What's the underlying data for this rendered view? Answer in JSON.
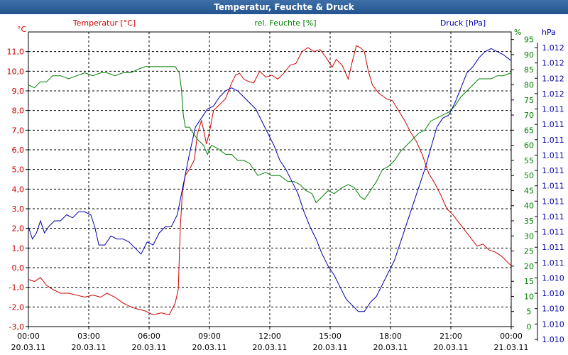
{
  "window": {
    "title": "Temperatur, Feuchte & Druck"
  },
  "chart_data": {
    "type": "line",
    "title": "Temperatur, Feuchte & Druck",
    "grid": true,
    "x": {
      "ticks": [
        {
          "time": "00:00",
          "date": "20.03.11"
        },
        {
          "time": "03:00",
          "date": "20.03.11"
        },
        {
          "time": "06:00",
          "date": "20.03.11"
        },
        {
          "time": "09:00",
          "date": "20.03.11"
        },
        {
          "time": "12:00",
          "date": "20.03.11"
        },
        {
          "time": "15:00",
          "date": "20.03.11"
        },
        {
          "time": "18:00",
          "date": "20.03.11"
        },
        {
          "time": "21:00",
          "date": "20.03.11"
        },
        {
          "time": "00:00",
          "date": "21.03.11"
        }
      ],
      "range_hours": [
        0,
        24
      ]
    },
    "axes": {
      "temperature": {
        "label": "Temperatur [°C]",
        "unit_label": "°C",
        "color": "#cc0000",
        "ylim": [
          -3.0,
          12.0
        ],
        "ticks": [
          "-3,0",
          "-2,0",
          "-1,0",
          "0,0",
          "1,0",
          "2,0",
          "3,0",
          "4,0",
          "5,0",
          "6,0",
          "7,0",
          "8,0",
          "9,0",
          "10,0",
          "11,0"
        ]
      },
      "humidity": {
        "label": "rel. Feuchte [%]",
        "unit_label": "%",
        "color": "#008000",
        "ylim": [
          0,
          97.5
        ],
        "ticks": [
          "0",
          "5",
          "10",
          "15",
          "20",
          "25",
          "30",
          "35",
          "40",
          "45",
          "50",
          "55",
          "60",
          "65",
          "70",
          "75",
          "80",
          "85",
          "90",
          "95"
        ]
      },
      "pressure": {
        "label": "Druck [hPa]",
        "unit_label": "hPa",
        "color": "#0000aa",
        "ticks": [
          "1.010",
          "1.010",
          "1.010",
          "1.010",
          "1.010",
          "1.011",
          "1.011",
          "1.011",
          "1.011",
          "1.011",
          "1.011",
          "1.011",
          "1.011",
          "1.011",
          "1.011",
          "1.011",
          "1.012",
          "1.012",
          "1.012",
          "1.012"
        ]
      }
    },
    "series": [
      {
        "name": "Temperatur [°C]",
        "axis": "temperature",
        "color": "#cc0000",
        "points": [
          [
            0,
            -0.6
          ],
          [
            0.3,
            -0.7
          ],
          [
            0.6,
            -0.5
          ],
          [
            0.9,
            -0.9
          ],
          [
            1.2,
            -1.1
          ],
          [
            1.6,
            -1.3
          ],
          [
            2.0,
            -1.3
          ],
          [
            2.4,
            -1.4
          ],
          [
            2.8,
            -1.5
          ],
          [
            3.2,
            -1.4
          ],
          [
            3.6,
            -1.5
          ],
          [
            3.9,
            -1.3
          ],
          [
            4.3,
            -1.5
          ],
          [
            4.7,
            -1.8
          ],
          [
            5.1,
            -2.0
          ],
          [
            5.4,
            -2.1
          ],
          [
            5.8,
            -2.2
          ],
          [
            6.2,
            -2.4
          ],
          [
            6.6,
            -2.3
          ],
          [
            7.0,
            -2.4
          ],
          [
            7.3,
            -1.8
          ],
          [
            7.45,
            -1.1
          ],
          [
            7.55,
            2.0
          ],
          [
            7.65,
            3.8
          ],
          [
            7.8,
            4.7
          ],
          [
            8.0,
            5.0
          ],
          [
            8.25,
            5.5
          ],
          [
            8.4,
            6.8
          ],
          [
            8.6,
            7.5
          ],
          [
            8.75,
            6.8
          ],
          [
            8.85,
            6.3
          ],
          [
            9.0,
            6.9
          ],
          [
            9.2,
            8.0
          ],
          [
            9.5,
            8.3
          ],
          [
            9.8,
            8.6
          ],
          [
            10.1,
            9.4
          ],
          [
            10.3,
            9.8
          ],
          [
            10.5,
            9.9
          ],
          [
            10.7,
            9.6
          ],
          [
            10.9,
            9.5
          ],
          [
            11.2,
            9.4
          ],
          [
            11.5,
            10.0
          ],
          [
            11.8,
            9.7
          ],
          [
            12.1,
            9.8
          ],
          [
            12.4,
            9.6
          ],
          [
            12.7,
            9.9
          ],
          [
            13.0,
            10.3
          ],
          [
            13.3,
            10.4
          ],
          [
            13.6,
            11.0
          ],
          [
            13.9,
            11.2
          ],
          [
            14.2,
            11.0
          ],
          [
            14.5,
            11.1
          ],
          [
            14.8,
            10.7
          ],
          [
            15.1,
            10.2
          ],
          [
            15.3,
            10.6
          ],
          [
            15.6,
            10.3
          ],
          [
            15.9,
            9.6
          ],
          [
            16.1,
            10.5
          ],
          [
            16.3,
            11.3
          ],
          [
            16.5,
            11.2
          ],
          [
            16.7,
            11.0
          ],
          [
            16.9,
            10.0
          ],
          [
            17.1,
            9.3
          ],
          [
            17.4,
            8.9
          ],
          [
            17.8,
            8.6
          ],
          [
            18.1,
            8.5
          ],
          [
            18.4,
            8.0
          ],
          [
            18.7,
            7.5
          ],
          [
            19.0,
            6.9
          ],
          [
            19.3,
            6.4
          ],
          [
            19.6,
            5.7
          ],
          [
            19.9,
            4.8
          ],
          [
            20.2,
            4.3
          ],
          [
            20.5,
            3.7
          ],
          [
            20.8,
            3.0
          ],
          [
            21.1,
            2.7
          ],
          [
            21.4,
            2.3
          ],
          [
            21.7,
            1.9
          ],
          [
            22.0,
            1.5
          ],
          [
            22.3,
            1.1
          ],
          [
            22.6,
            1.2
          ],
          [
            22.9,
            0.9
          ],
          [
            23.2,
            0.8
          ],
          [
            23.5,
            0.6
          ],
          [
            23.8,
            0.3
          ],
          [
            24.0,
            0.1
          ]
        ]
      },
      {
        "name": "rel. Feuchte [%]",
        "axis": "humidity",
        "color": "#008000",
        "points": [
          [
            0,
            80
          ],
          [
            0.3,
            79
          ],
          [
            0.6,
            81
          ],
          [
            0.9,
            81
          ],
          [
            1.2,
            83
          ],
          [
            1.6,
            83
          ],
          [
            2.0,
            82
          ],
          [
            2.4,
            83
          ],
          [
            2.8,
            84
          ],
          [
            3.2,
            83
          ],
          [
            3.6,
            84
          ],
          [
            3.9,
            84
          ],
          [
            4.3,
            83
          ],
          [
            4.7,
            84
          ],
          [
            5.1,
            84
          ],
          [
            5.4,
            85
          ],
          [
            5.8,
            86
          ],
          [
            6.2,
            86
          ],
          [
            6.6,
            86
          ],
          [
            7.0,
            86
          ],
          [
            7.3,
            86
          ],
          [
            7.5,
            84
          ],
          [
            7.6,
            79
          ],
          [
            7.7,
            70
          ],
          [
            7.8,
            66
          ],
          [
            8.0,
            66
          ],
          [
            8.2,
            64
          ],
          [
            8.4,
            62
          ],
          [
            8.7,
            60
          ],
          [
            8.9,
            57
          ],
          [
            9.1,
            60
          ],
          [
            9.4,
            59
          ],
          [
            9.8,
            57
          ],
          [
            10.1,
            57
          ],
          [
            10.4,
            55
          ],
          [
            10.7,
            55
          ],
          [
            11.0,
            54
          ],
          [
            11.4,
            50
          ],
          [
            11.8,
            51
          ],
          [
            12.1,
            50
          ],
          [
            12.5,
            50
          ],
          [
            12.9,
            48
          ],
          [
            13.2,
            48
          ],
          [
            13.5,
            47
          ],
          [
            13.8,
            45
          ],
          [
            14.1,
            44
          ],
          [
            14.3,
            41
          ],
          [
            14.6,
            43
          ],
          [
            14.9,
            45
          ],
          [
            15.2,
            44
          ],
          [
            15.6,
            46
          ],
          [
            15.9,
            47
          ],
          [
            16.2,
            46
          ],
          [
            16.5,
            43
          ],
          [
            16.7,
            42
          ],
          [
            17.0,
            45
          ],
          [
            17.3,
            48
          ],
          [
            17.6,
            52
          ],
          [
            17.9,
            53
          ],
          [
            18.2,
            55
          ],
          [
            18.5,
            58
          ],
          [
            18.8,
            60
          ],
          [
            19.1,
            62
          ],
          [
            19.4,
            64
          ],
          [
            19.7,
            65
          ],
          [
            20.0,
            68
          ],
          [
            20.3,
            69
          ],
          [
            20.6,
            70
          ],
          [
            20.9,
            71
          ],
          [
            21.2,
            73
          ],
          [
            21.5,
            76
          ],
          [
            21.8,
            78
          ],
          [
            22.1,
            80
          ],
          [
            22.4,
            82
          ],
          [
            22.7,
            82
          ],
          [
            23.0,
            82
          ],
          [
            23.3,
            83
          ],
          [
            23.6,
            83
          ],
          [
            24.0,
            84
          ]
        ]
      },
      {
        "name": "Druck [hPa]",
        "axis": "pressure",
        "color": "#0000aa",
        "points": [
          [
            0,
            33
          ],
          [
            0.2,
            29
          ],
          [
            0.4,
            31
          ],
          [
            0.6,
            35
          ],
          [
            0.8,
            31
          ],
          [
            1.0,
            33
          ],
          [
            1.3,
            35
          ],
          [
            1.6,
            35
          ],
          [
            1.9,
            37
          ],
          [
            2.2,
            36
          ],
          [
            2.5,
            38
          ],
          [
            2.8,
            38
          ],
          [
            3.1,
            37
          ],
          [
            3.3,
            33
          ],
          [
            3.5,
            27
          ],
          [
            3.8,
            27
          ],
          [
            4.1,
            30
          ],
          [
            4.4,
            29
          ],
          [
            4.7,
            29
          ],
          [
            5.0,
            28
          ],
          [
            5.3,
            26
          ],
          [
            5.6,
            24
          ],
          [
            5.9,
            28
          ],
          [
            6.2,
            27
          ],
          [
            6.5,
            31
          ],
          [
            6.8,
            33
          ],
          [
            7.1,
            33
          ],
          [
            7.4,
            37
          ],
          [
            7.7,
            47
          ],
          [
            8.0,
            57
          ],
          [
            8.3,
            66
          ],
          [
            8.6,
            69
          ],
          [
            8.9,
            72
          ],
          [
            9.2,
            73
          ],
          [
            9.5,
            76
          ],
          [
            9.8,
            78
          ],
          [
            10.1,
            79
          ],
          [
            10.4,
            78
          ],
          [
            10.7,
            76
          ],
          [
            11.0,
            74
          ],
          [
            11.3,
            72
          ],
          [
            11.6,
            68
          ],
          [
            11.9,
            64
          ],
          [
            12.2,
            60
          ],
          [
            12.5,
            55
          ],
          [
            12.8,
            52
          ],
          [
            13.1,
            48
          ],
          [
            13.4,
            44
          ],
          [
            13.7,
            38
          ],
          [
            14.0,
            33
          ],
          [
            14.3,
            29
          ],
          [
            14.6,
            24
          ],
          [
            14.9,
            20
          ],
          [
            15.2,
            17
          ],
          [
            15.5,
            13
          ],
          [
            15.8,
            9
          ],
          [
            16.1,
            7
          ],
          [
            16.4,
            5
          ],
          [
            16.7,
            5
          ],
          [
            17.0,
            8
          ],
          [
            17.3,
            10
          ],
          [
            17.6,
            14
          ],
          [
            17.9,
            18
          ],
          [
            18.2,
            22
          ],
          [
            18.5,
            28
          ],
          [
            18.8,
            34
          ],
          [
            19.1,
            40
          ],
          [
            19.4,
            46
          ],
          [
            19.7,
            52
          ],
          [
            20.0,
            59
          ],
          [
            20.3,
            66
          ],
          [
            20.6,
            69
          ],
          [
            20.9,
            70
          ],
          [
            21.2,
            74
          ],
          [
            21.5,
            79
          ],
          [
            21.8,
            84
          ],
          [
            22.1,
            86
          ],
          [
            22.4,
            89
          ],
          [
            22.7,
            91
          ],
          [
            23.0,
            92
          ],
          [
            23.3,
            91
          ],
          [
            23.6,
            90
          ],
          [
            23.8,
            89
          ],
          [
            24.0,
            88
          ]
        ]
      }
    ]
  }
}
